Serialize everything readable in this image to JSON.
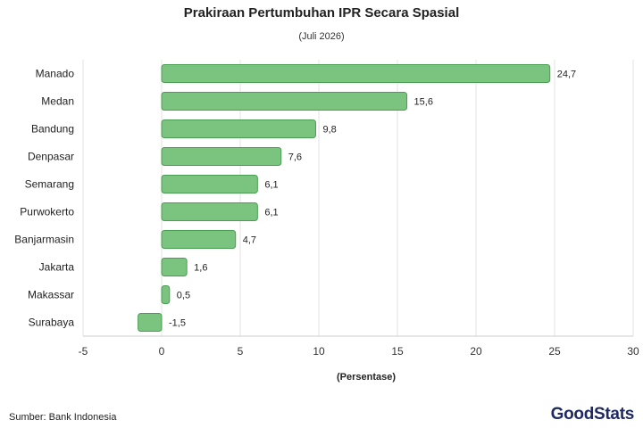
{
  "chart_data": {
    "type": "bar",
    "orientation": "horizontal",
    "title": "Prakiraan Pertumbuhan IPR Secara Spasial",
    "subtitle": "(Juli 2026)",
    "xlabel": "(Persentase)",
    "ylabel": "",
    "categories": [
      "Manado",
      "Medan",
      "Bandung",
      "Denpasar",
      "Semarang",
      "Purwokerto",
      "Banjarmasin",
      "Jakarta",
      "Makassar",
      "Surabaya"
    ],
    "values": [
      24.7,
      15.6,
      9.8,
      7.6,
      6.1,
      6.1,
      4.7,
      1.6,
      0.5,
      -1.5
    ],
    "value_labels": [
      "24,7",
      "15,6",
      "9,8",
      "7,6",
      "6,1",
      "6,1",
      "4,7",
      "1,6",
      "0,5",
      "-1,5"
    ],
    "xlim": [
      -5,
      30
    ],
    "xticks": [
      -5,
      0,
      5,
      10,
      15,
      20,
      25,
      30
    ],
    "grid": true,
    "bar_color": "#7bc47f",
    "bar_edge_color": "#4a9e52"
  },
  "footer": {
    "source": "Sumber: Bank Indonesia",
    "logo": "GoodStats"
  }
}
